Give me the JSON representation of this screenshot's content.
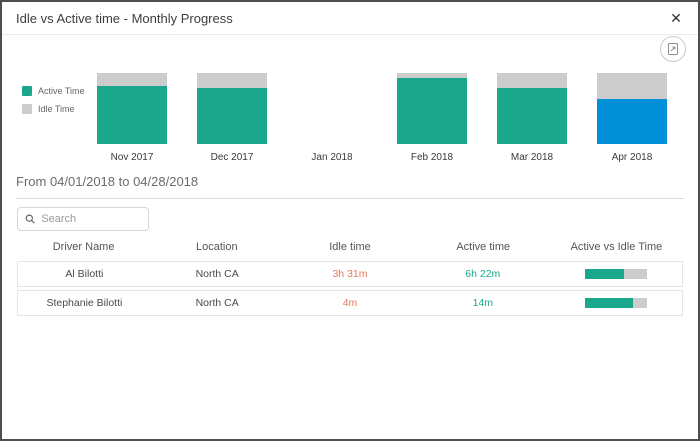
{
  "modal": {
    "title": "Idle vs Active time - Monthly Progress",
    "close_label": "✕"
  },
  "chart_data": {
    "type": "bar",
    "stacked": true,
    "categories": [
      "Nov 2017",
      "Dec 2017",
      "Jan 2018",
      "Feb 2018",
      "Mar 2018",
      "Apr 2018"
    ],
    "series": [
      {
        "name": "Active Time",
        "values": [
          82,
          79,
          0,
          93,
          79,
          63
        ]
      },
      {
        "name": "Idle Time",
        "values": [
          18,
          21,
          0,
          7,
          21,
          37
        ]
      }
    ],
    "value_unit": "percent of bar height",
    "selected_category": "Apr 2018",
    "legend_position": "left",
    "legend": [
      {
        "label": "Active Time",
        "color": "#1aa78c"
      },
      {
        "label": "Idle Time",
        "color": "#cccccc"
      }
    ],
    "colors": {
      "active": "#1aa78c",
      "idle": "#cccccc",
      "selected_active": "#0191d9"
    }
  },
  "period": {
    "label": "From 04/01/2018 to 04/28/2018"
  },
  "search": {
    "placeholder": "Search"
  },
  "table": {
    "columns": [
      "Driver Name",
      "Location",
      "Idle time",
      "Active time",
      "Active vs Idle Time"
    ],
    "rows": [
      {
        "driver": "Al Bilotti",
        "location": "North CA",
        "idle": "3h 31m",
        "active": "6h 22m",
        "active_pct": 64
      },
      {
        "driver": "Stephanie Bilotti",
        "location": "North CA",
        "idle": "4m",
        "active": "14m",
        "active_pct": 78
      }
    ]
  }
}
